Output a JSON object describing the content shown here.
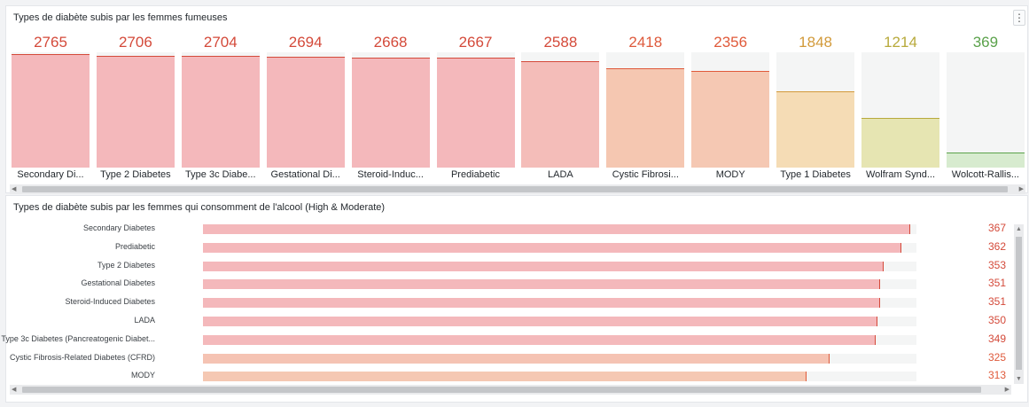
{
  "panel1": {
    "title": "Types de diabète subis par les femmes fumeuses",
    "menu_icon": "kebab-menu-icon",
    "max": 2800,
    "gauges": [
      {
        "label": "Secondary Di...",
        "value": 2765,
        "color": "#d44a3a",
        "fill": "#f4b8bb"
      },
      {
        "label": "Type 2 Diabetes",
        "value": 2706,
        "color": "#d44a3a",
        "fill": "#f4b8bb"
      },
      {
        "label": "Type 3c Diabe...",
        "value": 2704,
        "color": "#d44a3a",
        "fill": "#f4b8bb"
      },
      {
        "label": "Gestational Di...",
        "value": 2694,
        "color": "#d44a3a",
        "fill": "#f4b8bb"
      },
      {
        "label": "Steroid-Induc...",
        "value": 2668,
        "color": "#d44a3a",
        "fill": "#f4b8bb"
      },
      {
        "label": "Prediabetic",
        "value": 2667,
        "color": "#d44a3a",
        "fill": "#f4b8bb"
      },
      {
        "label": "LADA",
        "value": 2588,
        "color": "#d44a3a",
        "fill": "#f4bdb9"
      },
      {
        "label": "Cystic Fibrosi...",
        "value": 2418,
        "color": "#de5a3c",
        "fill": "#f5c7b1"
      },
      {
        "label": "MODY",
        "value": 2356,
        "color": "#e05a3a",
        "fill": "#f5c8b3"
      },
      {
        "label": "Type 1 Diabetes",
        "value": 1848,
        "color": "#d29a3a",
        "fill": "#f5dcb5"
      },
      {
        "label": "Wolfram Synd...",
        "value": 1214,
        "color": "#b8aa3c",
        "fill": "#e6e5b2"
      },
      {
        "label": "Wolcott-Rallis...",
        "value": 369,
        "color": "#5ba24b",
        "fill": "#d7ebcf"
      }
    ]
  },
  "panel2": {
    "title": "Types de diabète subis par les femmes qui consomment de l'alcool (High & Moderate)",
    "max": 370,
    "rows": [
      {
        "label": "Secondary Diabetes",
        "value": 367,
        "color": "#d44a3a",
        "fill": "#f4b8bb"
      },
      {
        "label": "Prediabetic",
        "value": 362,
        "color": "#d44a3a",
        "fill": "#f4b8bb"
      },
      {
        "label": "Type 2 Diabetes",
        "value": 353,
        "color": "#d44a3a",
        "fill": "#f4b8bb"
      },
      {
        "label": "Gestational Diabetes",
        "value": 351,
        "color": "#d44a3a",
        "fill": "#f4b8bb"
      },
      {
        "label": "Steroid-Induced Diabetes",
        "value": 351,
        "color": "#d44a3a",
        "fill": "#f4b8bb"
      },
      {
        "label": "LADA",
        "value": 350,
        "color": "#d44a3a",
        "fill": "#f4b8bb"
      },
      {
        "label": "Type 3c Diabetes (Pancreatogenic Diabet...",
        "value": 349,
        "color": "#d44a3a",
        "fill": "#f4b9bb"
      },
      {
        "label": "Cystic Fibrosis-Related Diabetes (CFRD)",
        "value": 325,
        "color": "#de5a3c",
        "fill": "#f5c3b3"
      },
      {
        "label": "MODY",
        "value": 313,
        "color": "#e05a3a",
        "fill": "#f5c8b3"
      }
    ]
  }
}
